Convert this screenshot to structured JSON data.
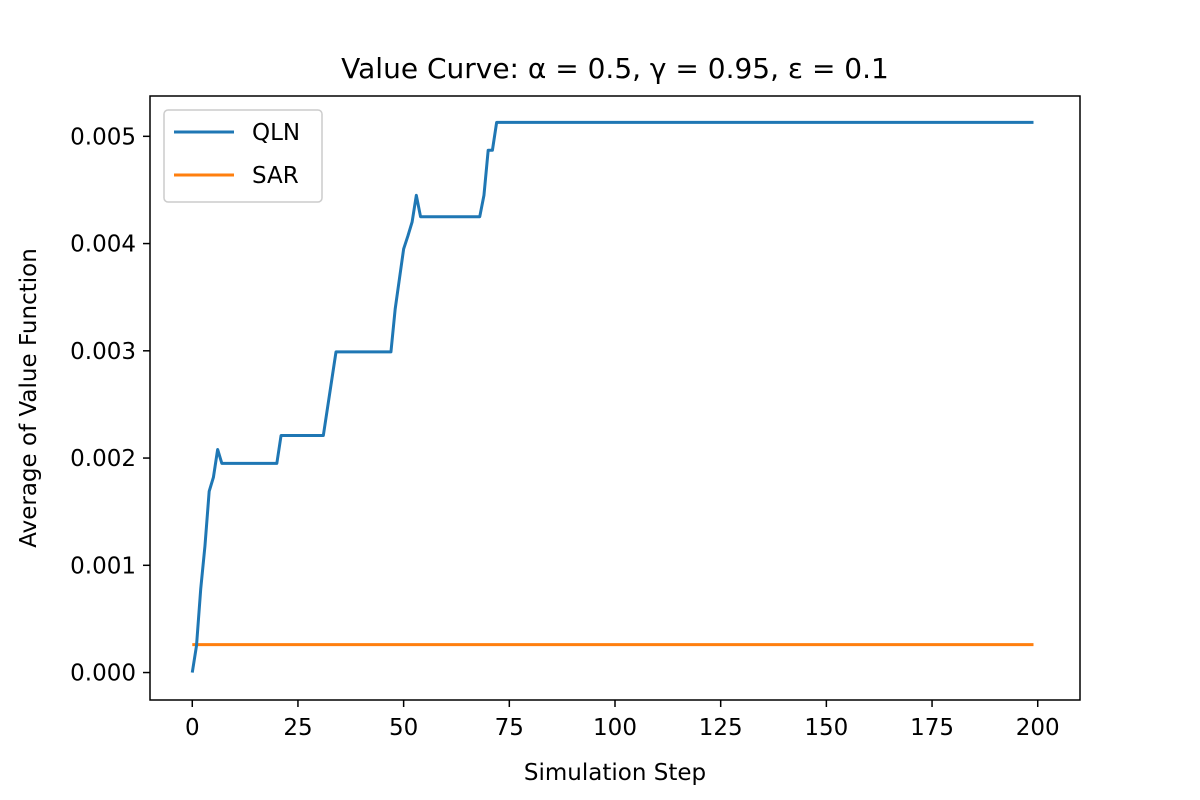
{
  "chart_data": {
    "type": "line",
    "title": "Value Curve: α = 0.5, γ = 0.95, ε = 0.1",
    "xlabel": "Simulation Step",
    "ylabel": "Average of Value Function",
    "xlim": [
      -10,
      210
    ],
    "ylim": [
      -0.000256,
      0.005376
    ],
    "xticks": [
      0,
      25,
      50,
      75,
      100,
      125,
      150,
      175,
      200
    ],
    "xtick_labels": [
      "0",
      "25",
      "50",
      "75",
      "100",
      "125",
      "150",
      "175",
      "200"
    ],
    "yticks": [
      0.0,
      0.001,
      0.002,
      0.003,
      0.004,
      0.005
    ],
    "ytick_labels": [
      "0.000",
      "0.001",
      "0.002",
      "0.003",
      "0.004",
      "0.005"
    ],
    "grid": false,
    "legend_position": "top-left",
    "series": [
      {
        "name": "QLN",
        "color": "#1f77b4",
        "x": [
          0,
          1,
          2,
          3,
          4,
          5,
          6,
          7,
          20,
          21,
          31,
          34,
          47,
          48,
          49,
          50,
          51,
          52,
          53,
          54,
          68,
          69,
          70,
          71,
          72,
          199
        ],
        "y": [
          0.0,
          0.00025,
          0.00078,
          0.00118,
          0.00169,
          0.00182,
          0.00208,
          0.00195,
          0.00195,
          0.00221,
          0.00221,
          0.00299,
          0.00299,
          0.00339,
          0.00367,
          0.00395,
          0.00407,
          0.0042,
          0.00445,
          0.00425,
          0.00425,
          0.00445,
          0.00487,
          0.00487,
          0.00513,
          0.00513
        ]
      },
      {
        "name": "SAR",
        "color": "#ff7f0e",
        "x": [
          0,
          199
        ],
        "y": [
          0.00026,
          0.00026
        ]
      }
    ]
  }
}
